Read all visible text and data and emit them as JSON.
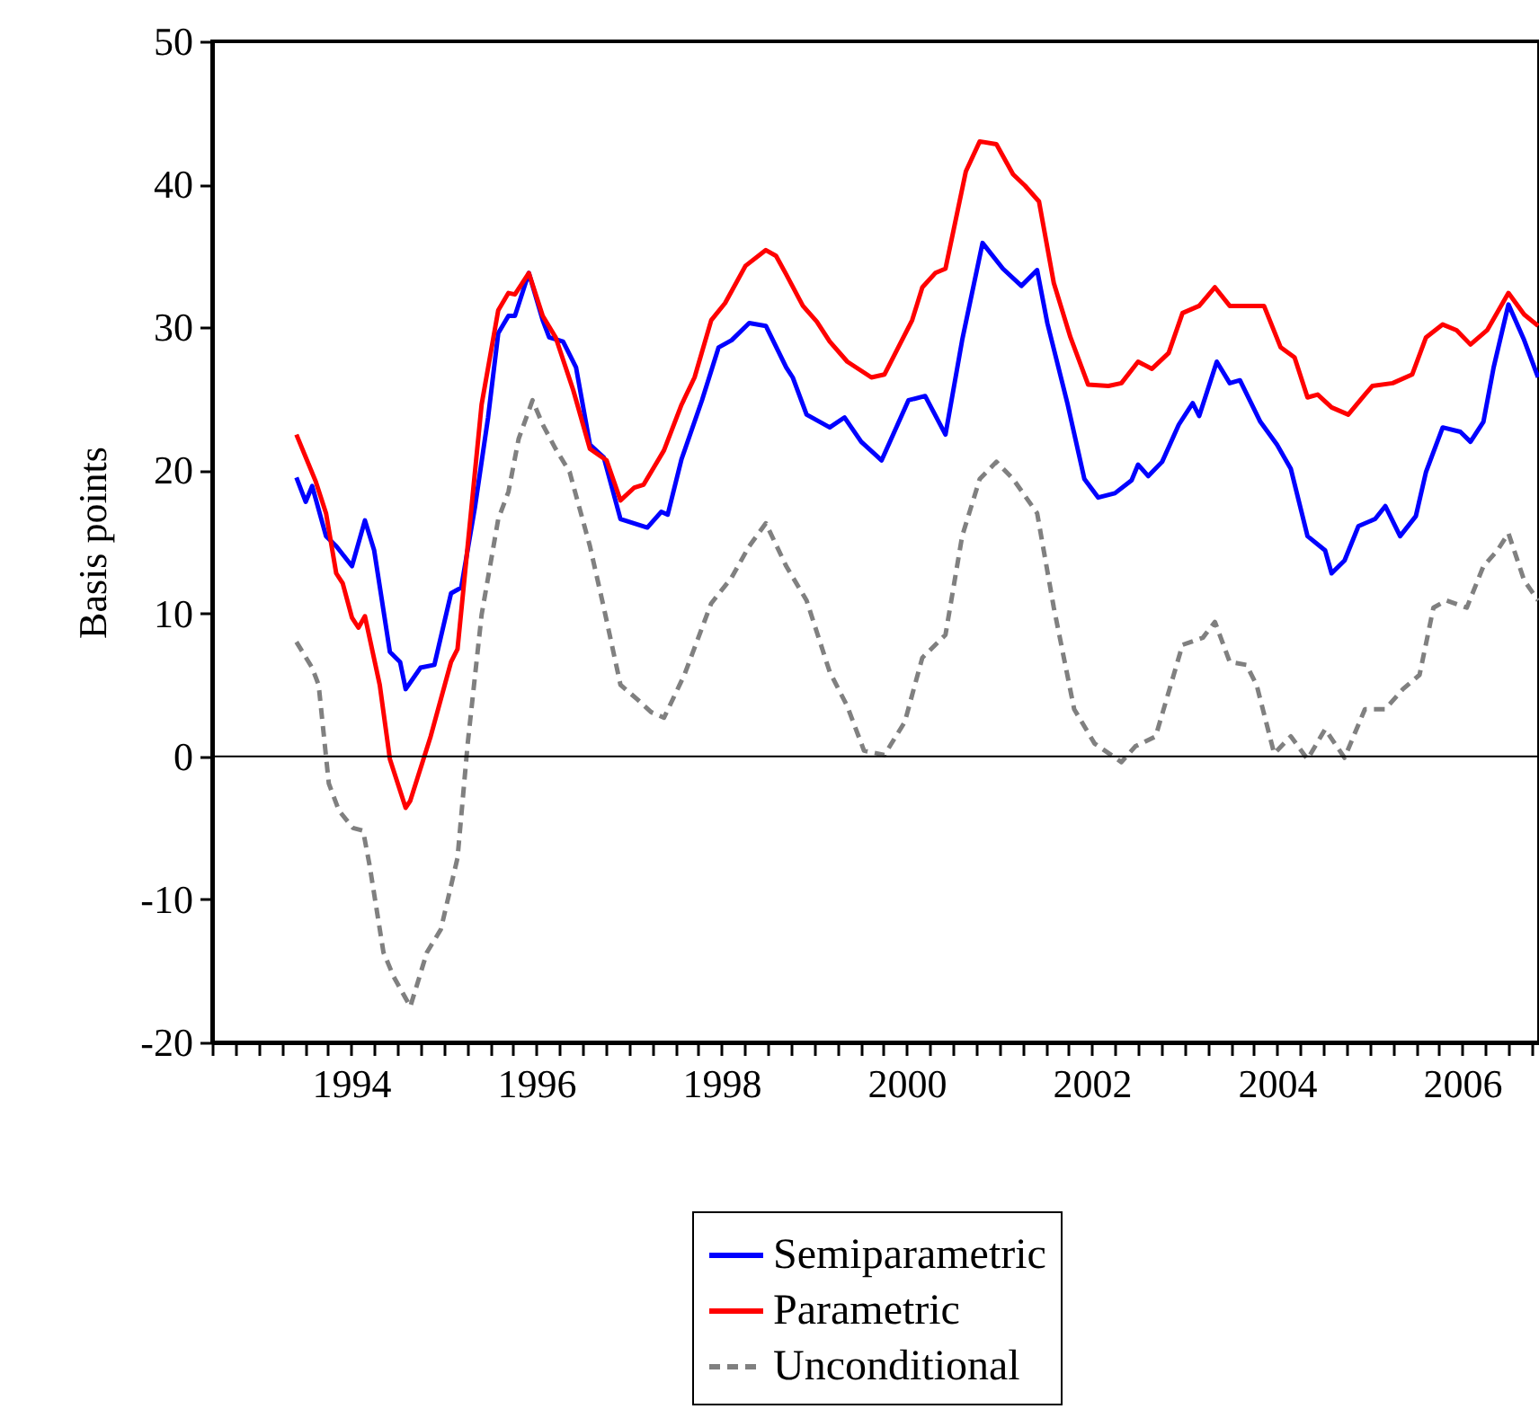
{
  "chart_data": {
    "type": "line",
    "ylabel": "Basis points",
    "legend": "bottom",
    "xlim": [
      1993,
      2007.33
    ],
    "xticks": [
      {
        "value": 1993,
        "label": null
      },
      {
        "value": 1993.25,
        "label": null
      },
      {
        "value": 1993.5,
        "label": null
      },
      {
        "value": 1993.75,
        "label": null
      },
      {
        "value": 1994,
        "label": null
      },
      {
        "value": 1994.25,
        "label": null
      },
      {
        "value": 1994.5,
        "label": "1994"
      },
      {
        "value": 1994.75,
        "label": null
      },
      {
        "value": 1995,
        "label": null
      },
      {
        "value": 1995.25,
        "label": null
      },
      {
        "value": 1995.5,
        "label": null
      },
      {
        "value": 1995.75,
        "label": null
      },
      {
        "value": 1996,
        "label": null
      },
      {
        "value": 1996.25,
        "label": null
      },
      {
        "value": 1996.5,
        "label": "1996"
      },
      {
        "value": 1996.75,
        "label": null
      },
      {
        "value": 1997,
        "label": null
      },
      {
        "value": 1997.25,
        "label": null
      },
      {
        "value": 1997.5,
        "label": null
      },
      {
        "value": 1997.75,
        "label": null
      },
      {
        "value": 1998,
        "label": null
      },
      {
        "value": 1998.25,
        "label": null
      },
      {
        "value": 1998.5,
        "label": "1998"
      },
      {
        "value": 1998.75,
        "label": null
      },
      {
        "value": 1999,
        "label": null
      },
      {
        "value": 1999.25,
        "label": null
      },
      {
        "value": 1999.5,
        "label": null
      },
      {
        "value": 1999.75,
        "label": null
      },
      {
        "value": 2000,
        "label": null
      },
      {
        "value": 2000.25,
        "label": null
      },
      {
        "value": 2000.5,
        "label": "2000"
      },
      {
        "value": 2000.75,
        "label": null
      },
      {
        "value": 2001,
        "label": null
      },
      {
        "value": 2001.25,
        "label": null
      },
      {
        "value": 2001.5,
        "label": null
      },
      {
        "value": 2001.75,
        "label": null
      },
      {
        "value": 2002,
        "label": null
      },
      {
        "value": 2002.25,
        "label": null
      },
      {
        "value": 2002.5,
        "label": "2002"
      },
      {
        "value": 2002.75,
        "label": null
      },
      {
        "value": 2003,
        "label": null
      },
      {
        "value": 2003.25,
        "label": null
      },
      {
        "value": 2003.5,
        "label": null
      },
      {
        "value": 2003.75,
        "label": null
      },
      {
        "value": 2004,
        "label": null
      },
      {
        "value": 2004.25,
        "label": null
      },
      {
        "value": 2004.5,
        "label": "2004"
      },
      {
        "value": 2004.75,
        "label": null
      },
      {
        "value": 2005,
        "label": null
      },
      {
        "value": 2005.25,
        "label": null
      },
      {
        "value": 2005.5,
        "label": null
      },
      {
        "value": 2005.75,
        "label": null
      },
      {
        "value": 2006,
        "label": null
      },
      {
        "value": 2006.25,
        "label": null
      },
      {
        "value": 2006.5,
        "label": "2006"
      },
      {
        "value": 2006.75,
        "label": null
      },
      {
        "value": 2007,
        "label": null
      },
      {
        "value": 2007.25,
        "label": null
      }
    ],
    "ylim": [
      -20,
      50
    ],
    "yticks": [
      -20,
      -10,
      0,
      10,
      20,
      30,
      40,
      50
    ],
    "ref_lines": [
      {
        "axis": "y",
        "value": 0,
        "label": null,
        "color": "#000000"
      }
    ],
    "series": [
      {
        "name": "Semiparametric",
        "color": "#0000ff",
        "line_style": "solid",
        "x": [
          1993.91,
          1994.01,
          1994.08,
          1994.23,
          1994.34,
          1994.51,
          1994.65,
          1994.75,
          1994.92,
          1995.03,
          1995.09,
          1995.25,
          1995.4,
          1995.58,
          1995.69,
          1995.84,
          1995.98,
          1996.09,
          1996.2,
          1996.27,
          1996.42,
          1996.57,
          1996.64,
          1996.79,
          1996.93,
          1997.08,
          1997.23,
          1997.41,
          1997.7,
          1997.85,
          1997.92,
          1998.07,
          1998.29,
          1998.47,
          1998.61,
          1998.8,
          1998.98,
          1999.2,
          1999.27,
          1999.42,
          1999.67,
          1999.83,
          2000.01,
          2000.23,
          2000.52,
          2000.7,
          2000.92,
          2001.1,
          2001.32,
          2001.54,
          2001.74,
          2001.91,
          2002.02,
          2002.24,
          2002.42,
          2002.57,
          2002.75,
          2002.93,
          2003.0,
          2003.11,
          2003.26,
          2003.44,
          2003.59,
          2003.66,
          2003.85,
          2003.99,
          2004.1,
          2004.32,
          2004.5,
          2004.65,
          2004.83,
          2005.02,
          2005.09,
          2005.23,
          2005.38,
          2005.56,
          2005.67,
          2005.83,
          2006.0,
          2006.11,
          2006.29,
          2006.48,
          2006.59,
          2006.73,
          2006.84,
          2007.0,
          2007.17,
          2007.32
        ],
        "values": [
          19.5,
          17.8,
          18.9,
          15.4,
          14.7,
          13.3,
          16.5,
          14.4,
          7.3,
          6.6,
          4.7,
          6.2,
          6.4,
          11.4,
          11.8,
          17.5,
          23.7,
          29.6,
          30.8,
          30.8,
          33.8,
          30.5,
          29.3,
          29.0,
          27.2,
          21.8,
          20.9,
          16.6,
          16.0,
          17.1,
          16.9,
          20.8,
          24.9,
          28.6,
          29.1,
          30.3,
          30.1,
          27.2,
          26.5,
          23.9,
          23.0,
          23.7,
          22.0,
          20.7,
          24.9,
          25.2,
          22.5,
          29.1,
          35.9,
          34.1,
          32.9,
          34.0,
          30.3,
          24.6,
          19.4,
          18.1,
          18.4,
          19.3,
          20.4,
          19.6,
          20.6,
          23.2,
          24.7,
          23.8,
          27.6,
          26.1,
          26.3,
          23.4,
          21.8,
          20.1,
          15.4,
          14.4,
          12.8,
          13.7,
          16.1,
          16.6,
          17.5,
          15.4,
          16.8,
          19.9,
          23.0,
          22.7,
          22.0,
          23.4,
          27.2,
          31.6,
          29.1,
          26.5
        ]
      },
      {
        "name": "Parametric",
        "color": "#ff0000",
        "line_style": "solid",
        "x": [
          1993.91,
          1994.12,
          1994.23,
          1994.34,
          1994.41,
          1994.51,
          1994.58,
          1994.65,
          1994.81,
          1994.92,
          1995.09,
          1995.14,
          1995.36,
          1995.58,
          1995.65,
          1995.91,
          1996.09,
          1996.2,
          1996.27,
          1996.42,
          1996.57,
          1996.71,
          1996.9,
          1997.08,
          1997.26,
          1997.41,
          1997.56,
          1997.66,
          1997.88,
          1998.07,
          1998.21,
          1998.39,
          1998.54,
          1998.76,
          1998.98,
          1999.09,
          1999.2,
          1999.38,
          1999.53,
          1999.67,
          1999.86,
          2000.12,
          2000.26,
          2000.41,
          2000.56,
          2000.67,
          2000.81,
          2000.92,
          2001.14,
          2001.29,
          2001.47,
          2001.65,
          2001.78,
          2001.93,
          2002.09,
          2002.27,
          2002.46,
          2002.68,
          2002.82,
          2003.0,
          2003.15,
          2003.33,
          2003.48,
          2003.66,
          2003.83,
          2003.99,
          2004.36,
          2004.54,
          2004.69,
          2004.83,
          2004.94,
          2005.09,
          2005.27,
          2005.45,
          2005.53,
          2005.75,
          2005.96,
          2006.11,
          2006.29,
          2006.44,
          2006.59,
          2006.77,
          2007.0,
          2007.17,
          2007.32
        ],
        "values": [
          22.5,
          19.2,
          17.0,
          12.8,
          12.1,
          9.7,
          9.0,
          9.8,
          5.0,
          -0.2,
          -3.6,
          -3.1,
          1.4,
          6.6,
          7.5,
          24.6,
          31.2,
          32.4,
          32.3,
          33.8,
          30.8,
          29.3,
          25.6,
          21.5,
          20.7,
          17.9,
          18.8,
          19.0,
          21.4,
          24.6,
          26.5,
          30.5,
          31.7,
          34.3,
          35.4,
          35.0,
          33.7,
          31.5,
          30.4,
          29.0,
          27.6,
          26.5,
          26.7,
          28.6,
          30.5,
          32.8,
          33.8,
          34.1,
          40.9,
          43.0,
          42.8,
          40.7,
          39.9,
          38.8,
          33.1,
          29.3,
          26.0,
          25.9,
          26.1,
          27.6,
          27.1,
          28.2,
          31.0,
          31.5,
          32.8,
          31.5,
          31.5,
          28.6,
          27.9,
          25.1,
          25.3,
          24.4,
          23.9,
          25.3,
          25.9,
          26.1,
          26.7,
          29.3,
          30.2,
          29.8,
          28.8,
          29.8,
          32.4,
          30.9,
          30.1
        ]
      },
      {
        "name": "Unconditional",
        "color": "#808080",
        "line_style": "dashed",
        "x": [
          1993.91,
          1994.08,
          1994.15,
          1994.26,
          1994.37,
          1994.52,
          1994.63,
          1994.7,
          1994.85,
          1994.96,
          1995.14,
          1995.32,
          1995.47,
          1995.65,
          1995.76,
          1995.91,
          1996.09,
          1996.2,
          1996.31,
          1996.46,
          1996.57,
          1996.71,
          1996.86,
          1997.08,
          1997.23,
          1997.41,
          1997.59,
          1997.74,
          1997.88,
          1998.1,
          1998.39,
          1998.61,
          1998.8,
          1998.98,
          1999.2,
          1999.42,
          1999.67,
          1999.86,
          2000.04,
          2000.26,
          2000.48,
          2000.67,
          2000.92,
          2001.1,
          2001.29,
          2001.47,
          2001.65,
          2001.91,
          2002.09,
          2002.31,
          2002.53,
          2002.82,
          2002.97,
          2003.19,
          2003.48,
          2003.7,
          2003.83,
          2003.99,
          2004.17,
          2004.28,
          2004.47,
          2004.65,
          2004.83,
          2005.02,
          2005.23,
          2005.45,
          2005.67,
          2005.86,
          2006.04,
          2006.19,
          2006.33,
          2006.55,
          2006.73,
          2006.88,
          2007.0,
          2007.17,
          2007.32
        ],
        "values": [
          8.0,
          6.2,
          5.0,
          -1.9,
          -3.8,
          -5.0,
          -5.2,
          -7.6,
          -13.7,
          -15.4,
          -17.5,
          -13.7,
          -12.1,
          -7.1,
          0.9,
          9.9,
          16.6,
          18.5,
          22.2,
          24.9,
          23.2,
          21.5,
          19.9,
          14.7,
          10.4,
          5.0,
          4.0,
          3.1,
          2.7,
          5.7,
          10.7,
          12.5,
          14.7,
          16.3,
          13.3,
          10.9,
          5.9,
          3.5,
          0.4,
          0.1,
          2.4,
          6.9,
          8.5,
          15.4,
          19.4,
          20.6,
          19.4,
          17.0,
          10.4,
          3.3,
          0.9,
          -0.4,
          0.7,
          1.4,
          7.8,
          8.3,
          9.4,
          6.6,
          6.4,
          5.0,
          0.2,
          1.4,
          -0.2,
          1.9,
          -0.1,
          3.3,
          3.3,
          4.7,
          5.7,
          10.4,
          10.9,
          10.4,
          13.3,
          14.4,
          15.6,
          12.3,
          10.9
        ]
      }
    ]
  }
}
